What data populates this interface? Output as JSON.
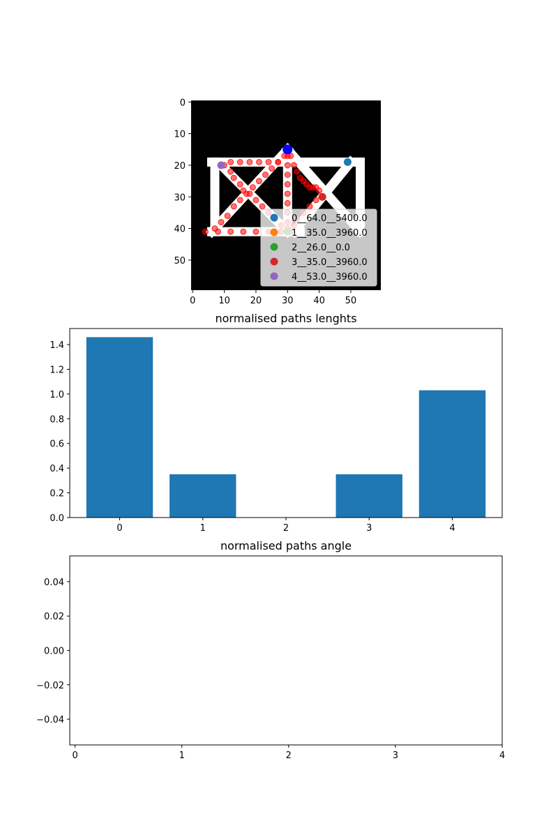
{
  "chart_data": [
    {
      "type": "scatter",
      "title": "",
      "xlabel": "",
      "ylabel": "",
      "xlim": [
        -0.5,
        59.5
      ],
      "ylim": [
        59.5,
        -0.5
      ],
      "y_inverted": true,
      "xticks": [
        "0",
        "10",
        "20",
        "30",
        "40",
        "50"
      ],
      "yticks": [
        "0",
        "10",
        "20",
        "30",
        "40",
        "50"
      ],
      "background_image": "binary skeleton image: white truss-like shape on black",
      "mask_segments": [
        [
          [
            6,
            19
          ],
          [
            52,
            19
          ]
        ],
        [
          [
            6,
            41
          ],
          [
            34,
            41
          ]
        ],
        [
          [
            7,
            19
          ],
          [
            7,
            41
          ]
        ],
        [
          [
            53,
            19
          ],
          [
            53,
            41
          ]
        ],
        [
          [
            30,
            18
          ],
          [
            30,
            41
          ]
        ],
        [
          [
            9,
            20
          ],
          [
            30,
            41
          ]
        ],
        [
          [
            30,
            15
          ],
          [
            53,
            41
          ]
        ],
        [
          [
            30,
            15
          ],
          [
            6,
            41
          ]
        ],
        [
          [
            50,
            19
          ],
          [
            32,
            41
          ]
        ]
      ],
      "path_points": [
        [
          4,
          41
        ],
        [
          8,
          41
        ],
        [
          12,
          41
        ],
        [
          16,
          41
        ],
        [
          20,
          41
        ],
        [
          24,
          41
        ],
        [
          28,
          41
        ],
        [
          31,
          41
        ],
        [
          7,
          40
        ],
        [
          9,
          38
        ],
        [
          11,
          36
        ],
        [
          13,
          33
        ],
        [
          15,
          31
        ],
        [
          17,
          29
        ],
        [
          19,
          27
        ],
        [
          21,
          25
        ],
        [
          23,
          23
        ],
        [
          25,
          21
        ],
        [
          27,
          19
        ],
        [
          29,
          17
        ],
        [
          30,
          15
        ],
        [
          30,
          17
        ],
        [
          30,
          20
        ],
        [
          30,
          23
        ],
        [
          30,
          26
        ],
        [
          30,
          29
        ],
        [
          30,
          32
        ],
        [
          30,
          35
        ],
        [
          30,
          38
        ],
        [
          30,
          40
        ],
        [
          31,
          17
        ],
        [
          32,
          20
        ],
        [
          33,
          22
        ],
        [
          34,
          24
        ],
        [
          35,
          25
        ],
        [
          36,
          26
        ],
        [
          37,
          27
        ],
        [
          38,
          27
        ],
        [
          39,
          27
        ],
        [
          40,
          28
        ],
        [
          41,
          30
        ],
        [
          10,
          20
        ],
        [
          12,
          22
        ],
        [
          13,
          24
        ],
        [
          15,
          26
        ],
        [
          16,
          28
        ],
        [
          18,
          29
        ],
        [
          20,
          31
        ],
        [
          22,
          33
        ],
        [
          24,
          35
        ],
        [
          26,
          37
        ],
        [
          28,
          39
        ],
        [
          12,
          19
        ],
        [
          15,
          19
        ],
        [
          18,
          19
        ],
        [
          21,
          19
        ],
        [
          24,
          19
        ],
        [
          27,
          19
        ],
        [
          39,
          31
        ],
        [
          37,
          33
        ],
        [
          35,
          35
        ],
        [
          33,
          37
        ],
        [
          32,
          39
        ]
      ],
      "highlight_point": {
        "x": 30,
        "y": 15,
        "color": "#0000ff"
      },
      "series": [
        {
          "name": "0__64.0__5400.0",
          "x": 49,
          "y": 19,
          "color": "#1f77b4"
        },
        {
          "name": "1__35.0__3960.0",
          "x": 41,
          "y": 30,
          "color": "#ff7f0e"
        },
        {
          "name": "2__26.0__0.0",
          "x": 30,
          "y": 41,
          "color": "#2ca02c"
        },
        {
          "name": "3__35.0__3960.0",
          "x": 41,
          "y": 30,
          "color": "#d62728"
        },
        {
          "name": "4__53.0__3960.0",
          "x": 9,
          "y": 20,
          "color": "#9467bd"
        }
      ],
      "legend": "lower-right"
    },
    {
      "type": "bar",
      "title": "normalised paths lenghts",
      "xlabel": "",
      "ylabel": "",
      "categories": [
        "0",
        "1",
        "2",
        "3",
        "4"
      ],
      "values": [
        1.46,
        0.35,
        0.0,
        0.35,
        1.03
      ],
      "ylim": [
        0,
        1.53
      ],
      "yticks": [
        "0.0",
        "0.2",
        "0.4",
        "0.6",
        "0.8",
        "1.0",
        "1.2",
        "1.4"
      ],
      "color": "#1f77b4"
    },
    {
      "type": "line",
      "title": "normalised paths angle",
      "xlabel": "",
      "ylabel": "",
      "values": [],
      "xlim": [
        -0.05,
        4.0
      ],
      "ylim": [
        -0.055,
        0.055
      ],
      "xticks": [
        "0",
        "1",
        "2",
        "3",
        "4"
      ],
      "yticks": [
        "0.04",
        "0.02",
        "0.00",
        "−0.02",
        "−0.04"
      ]
    }
  ]
}
